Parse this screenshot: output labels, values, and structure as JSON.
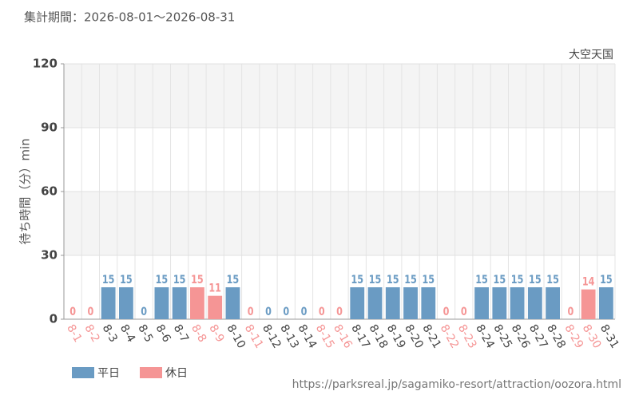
{
  "chart_data": {
    "type": "bar",
    "subtitle": "集計期間：2026-08-01～2026-08-31",
    "title": "大空天国",
    "y_label": "待ち時間（分）min",
    "source": "https://parksreal.jp/sagamiko-resort/attraction/oozora.html",
    "categories": [
      "8-1",
      "8-2",
      "8-3",
      "8-4",
      "8-5",
      "8-6",
      "8-7",
      "8-8",
      "8-9",
      "8-10",
      "8-11",
      "8-12",
      "8-13",
      "8-14",
      "8-15",
      "8-16",
      "8-17",
      "8-18",
      "8-19",
      "8-20",
      "8-21",
      "8-22",
      "8-23",
      "8-24",
      "8-25",
      "8-26",
      "8-27",
      "8-28",
      "8-29",
      "8-30",
      "8-31"
    ],
    "series": [
      {
        "name": "平日",
        "color": "#6a9bc3",
        "values": [
          null,
          null,
          15,
          15,
          0,
          15,
          15,
          null,
          null,
          15,
          null,
          0,
          0,
          0,
          null,
          null,
          15,
          15,
          15,
          15,
          15,
          null,
          null,
          15,
          15,
          15,
          15,
          15,
          null,
          null,
          15
        ]
      },
      {
        "name": "休日",
        "color": "#f59595",
        "values": [
          0,
          0,
          null,
          null,
          null,
          null,
          null,
          15,
          11,
          null,
          0,
          null,
          null,
          null,
          0,
          0,
          null,
          null,
          null,
          null,
          null,
          0,
          0,
          null,
          null,
          null,
          null,
          null,
          0,
          14,
          null
        ]
      }
    ],
    "ylim": [
      0,
      120
    ],
    "yticks": [
      0,
      30,
      60,
      90,
      120
    ],
    "grid": true
  }
}
